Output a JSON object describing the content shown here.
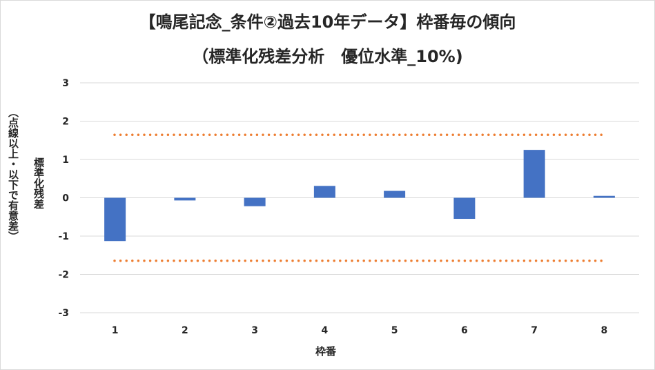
{
  "chart_data": {
    "type": "bar",
    "title_line1": "【鳴尾記念_条件②過去10年データ】枠番毎の傾向",
    "title_line2": "（標準化残差分析　優位水準_10%)",
    "xlabel": "枠番",
    "ylabel_line1": "標準化残差",
    "ylabel_line2": "（点線以上・以下で有意差）",
    "categories": [
      "1",
      "2",
      "3",
      "4",
      "5",
      "6",
      "7",
      "8"
    ],
    "values": [
      -1.13,
      -0.07,
      -0.22,
      0.31,
      0.18,
      -0.55,
      1.25,
      0.05
    ],
    "ylim": [
      -3,
      3
    ],
    "yticks": [
      "3",
      "2",
      "1",
      "0",
      "-1",
      "-2",
      "-3"
    ],
    "threshold_upper": 1.645,
    "threshold_lower": -1.645,
    "grid": true,
    "legend": "none",
    "colors": {
      "bar": "#4472c4",
      "threshold": "#ed7d31",
      "grid": "#d9d9d9"
    }
  }
}
